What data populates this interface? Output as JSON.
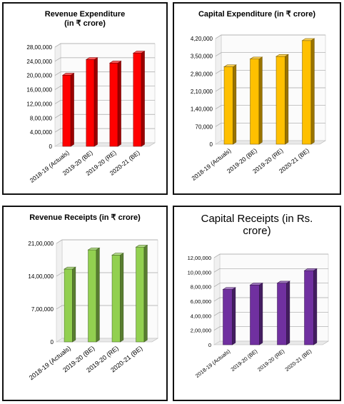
{
  "chart_data": [
    {
      "type": "bar",
      "title": "Revenue  Expenditure (in ₹ crore)",
      "categories": [
        "2018-19 (Actuals)",
        "2019-20 (BE)",
        "2019-20 (RE)",
        "2020-21 (BE)"
      ],
      "values": [
        2007399,
        2447780,
        2349645,
        2630145
      ],
      "ylim": [
        0,
        2800000
      ],
      "yticks": [
        "0",
        "4,00,000",
        "8,00,000",
        "12,00,000",
        "16,00,000",
        "20,00,000",
        "24,00,000",
        "28,00,000"
      ],
      "color": "#ff0000",
      "grid": true
    },
    {
      "type": "bar",
      "title": "Capital Expenditure (in ₹ crore)",
      "categories": [
        "2018-19 (Actuals)",
        "2019-20 (BE)",
        "2019-20 (RE)",
        "2020-21 (BE)"
      ],
      "values": [
        307714,
        338569,
        348907,
        412085
      ],
      "ylim": [
        0,
        420000
      ],
      "yticks": [
        "0",
        "70,000",
        "1,40,000",
        "2,10,000",
        "2,80,000",
        "3,50,000",
        "4,20,000"
      ],
      "color": "#ffc000",
      "grid": true
    },
    {
      "type": "bar",
      "title": "Revenue Receipts (in ₹ crore)",
      "categories": [
        "2018-19 (Actuals)",
        "2019-20 (BE)",
        "2019-20 (RE)",
        "2020-21 (BE)"
      ],
      "values": [
        1552916,
        1962761,
        1850101,
        2020926
      ],
      "ylim": [
        0,
        2100000
      ],
      "yticks": [
        "0",
        "7,00,000",
        "14,00,000",
        "21,00,000"
      ],
      "color": "#92d050",
      "grid": true
    },
    {
      "type": "bar",
      "title": "Capital Receipts (in Rs. crore)",
      "categories": [
        "2018-19 (Actuals)",
        "2019-20 (BE)",
        "2019-20 (RE)",
        "2020-21 (BE)"
      ],
      "values": [
        762197,
        823588,
        848751,
        1021304
      ],
      "ylim": [
        0,
        1200000
      ],
      "yticks": [
        "0",
        "2,00,000",
        "4,00,000",
        "6,00,000",
        "8,00,000",
        "10,00,000",
        "12,00,000"
      ],
      "color": "#7030a0",
      "grid": true
    }
  ]
}
